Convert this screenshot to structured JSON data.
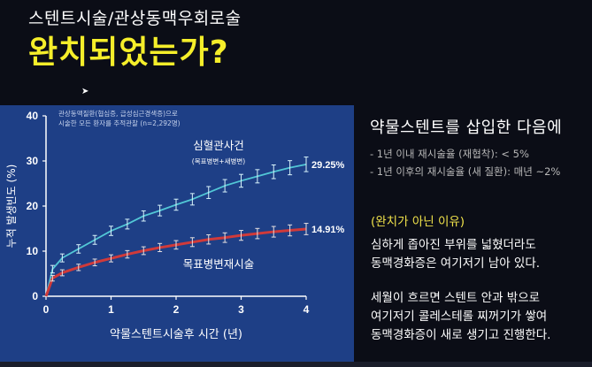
{
  "slide": {
    "subtitle": "스텐트시술/관상동맥우회로술",
    "title": "완치되었는가?"
  },
  "colors": {
    "title": "#f5ee2a",
    "chart_bg": "#1e3f86",
    "cardiac_line": "#52c7d6",
    "lesion_line": "#d03a3a",
    "section_heading": "#f0e24a"
  },
  "chart_data": {
    "type": "line",
    "note_line1": "관상동맥질환(협심증, 급성심근경색증)으로",
    "note_line2": "시술한 모든 환자를 추적관찰 (n=2,292명)",
    "xlabel": "약물스텐트시술후 시간 (년)",
    "ylabel": "누적 발생빈도 (%)",
    "xlim": [
      0,
      4
    ],
    "ylim": [
      0,
      40
    ],
    "x_ticks": [
      "0",
      "1",
      "2",
      "3",
      "4"
    ],
    "y_ticks": [
      "0",
      "10",
      "20",
      "30",
      "40"
    ],
    "grid": false,
    "series": [
      {
        "name": "심혈관사건",
        "sublabel": "(목표병변+새병변)",
        "end_label": "29.25%",
        "color": "#52c7d6",
        "x": [
          0,
          0.1,
          0.25,
          0.5,
          0.75,
          1.0,
          1.25,
          1.5,
          1.75,
          2.0,
          2.25,
          2.5,
          2.75,
          3.0,
          3.25,
          3.5,
          3.75,
          4.0
        ],
        "y": [
          0,
          6.0,
          8.5,
          10.5,
          12.5,
          14.5,
          16.0,
          17.8,
          19.0,
          20.3,
          21.5,
          23.0,
          24.5,
          25.6,
          26.6,
          27.6,
          28.5,
          29.25
        ]
      },
      {
        "name": "목표병변재시술",
        "end_label": "14.91%",
        "color": "#d03a3a",
        "x": [
          0,
          0.1,
          0.25,
          0.5,
          0.75,
          1.0,
          1.25,
          1.5,
          1.75,
          2.0,
          2.25,
          2.5,
          2.75,
          3.0,
          3.25,
          3.5,
          3.75,
          4.0
        ],
        "y": [
          0,
          4.0,
          5.2,
          6.4,
          7.5,
          8.4,
          9.3,
          10.1,
          10.8,
          11.4,
          12.0,
          12.6,
          13.0,
          13.5,
          13.9,
          14.3,
          14.6,
          14.91
        ]
      }
    ]
  },
  "panel": {
    "heading": "약물스텐트를 삽입한  다음에",
    "bullets": [
      "- 1년 이내 재시술율 (재협착): < 5%",
      "- 1년 이후의 재시술율 (새 질환): 매년 ~2%"
    ],
    "section_title": "(완치가 아닌 이유)",
    "paragraph1": [
      "심하게 좁아진 부위를 넓혔더라도",
      "동맥경화증은 여기저기 남아 있다."
    ],
    "paragraph2": [
      "세월이 흐르면 스텐트 안과 밖으로",
      "여기저기 콜레스테롤 찌꺼기가 쌓여",
      "동맥경화증이 새로 생기고 진행한다."
    ]
  }
}
